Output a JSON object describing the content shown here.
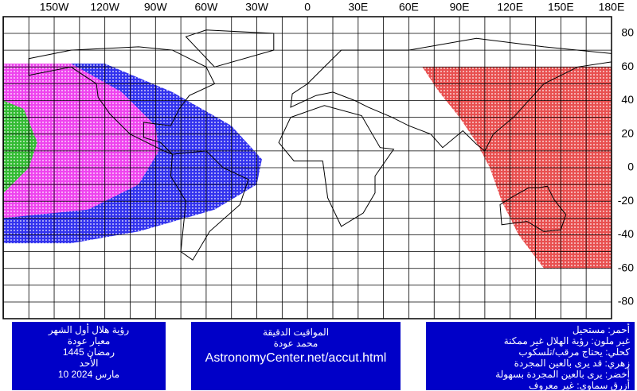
{
  "map": {
    "longitude_labels": [
      "150W",
      "120W",
      "90W",
      "60W",
      "30W",
      "0",
      "30E",
      "60E",
      "90E",
      "120E",
      "150E",
      "180E"
    ],
    "latitude_labels": [
      80,
      60,
      40,
      20,
      0,
      -20,
      -40,
      -60,
      -80
    ],
    "info_box": [
      "رؤية هلال أول الشهر",
      "معيار عودة",
      "رمضان 1445",
      "الأحد",
      "10 مارس 2024"
    ],
    "credit_box": [
      "المواقيت الدقيقة",
      "محمد عودة",
      "AstronomyCenter.net/accut.html"
    ],
    "legend": [
      "أحمر: مستحيل",
      "غير ملون: رؤية الهلال غير ممكنة",
      "كحلي: يحتاج مرقب/تلسكوب",
      "زهري: قد يرى بالعين المجردة",
      "أخضر: يرى بالعين المجردة بسهولة",
      "أزرق سماوي: غير معروف"
    ]
  }
}
